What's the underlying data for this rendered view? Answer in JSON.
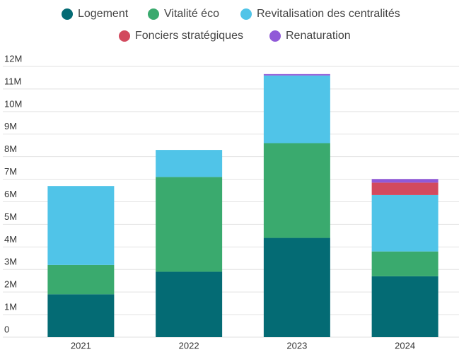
{
  "chart_data": {
    "type": "stacked-bar",
    "categories": [
      "2021",
      "2022",
      "2023",
      "2024"
    ],
    "series": [
      {
        "name": "Logement",
        "color": "#046b74",
        "values": [
          1900000,
          2900000,
          4400000,
          2700000
        ]
      },
      {
        "name": "Vitalité éco",
        "color": "#3aaa6e",
        "values": [
          1300000,
          4200000,
          4200000,
          1100000
        ]
      },
      {
        "name": "Revitalisation des centralités",
        "color": "#50c4e8",
        "values": [
          3500000,
          1200000,
          3000000,
          2500000
        ]
      },
      {
        "name": "Fonciers stratégiques",
        "color": "#d24a5e",
        "values": [
          0,
          0,
          0,
          550000
        ]
      },
      {
        "name": "Renaturation",
        "color": "#9059d8",
        "values": [
          0,
          0,
          60000,
          160000
        ]
      }
    ],
    "ylim": [
      0,
      12000000
    ],
    "yticks": [
      0,
      {
        "value": 1000000,
        "label": "1M"
      },
      {
        "value": 2000000,
        "label": "2M"
      },
      {
        "value": 3000000,
        "label": "3M"
      },
      {
        "value": 4000000,
        "label": "4M"
      },
      {
        "value": 5000000,
        "label": "5M"
      },
      {
        "value": 6000000,
        "label": "6M"
      },
      {
        "value": 7000000,
        "label": "7M"
      },
      {
        "value": 8000000,
        "label": "8M"
      },
      {
        "value": 9000000,
        "label": "9M"
      },
      {
        "value": 10000000,
        "label": "10M"
      },
      {
        "value": 11000000,
        "label": "11M"
      },
      {
        "value": 12000000,
        "label": "12M"
      }
    ],
    "grid": true,
    "legend": "top"
  }
}
